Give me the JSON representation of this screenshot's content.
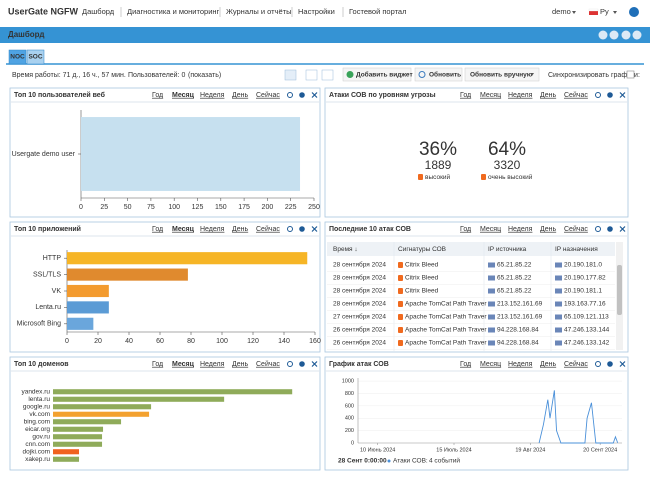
{
  "nav": {
    "brand": "UserGate NGFW",
    "items": [
      "Дашборд",
      "Диагностика и мониторинг",
      "Журналы и отчёты",
      "Настройки",
      "Гостевой портал"
    ],
    "user": "demo",
    "lang": "Ру"
  },
  "header": {
    "title": "Дашборд"
  },
  "tabs": [
    "NOC",
    "SOC"
  ],
  "toolbar": {
    "uptime": "Время работы: 71 д., 16 ч., 57 мин.",
    "users": "Пользователей: 0",
    "show": "(показать)",
    "add": "Добавить виджет",
    "refresh": "Обновить",
    "refresh_mode": "Обновить вручную",
    "sync": "Синхронизировать графики:"
  },
  "periods": [
    "Год",
    "Месяц",
    "Неделя",
    "День",
    "Сейчас"
  ],
  "widgets": [
    {
      "title": "Топ 10 пользователей веб",
      "chart": {
        "type": "hbar",
        "categories": [
          "Usergate demo user"
        ],
        "values": [
          235
        ],
        "colors": [
          "#c6e0ef"
        ],
        "xlim": [
          0,
          250
        ],
        "xticks": [
          0,
          25,
          50,
          75,
          100,
          125,
          150,
          175,
          200,
          225,
          250
        ]
      }
    },
    {
      "title": "Атаки СОВ по уровням угрозы",
      "levels": [
        {
          "percent": "36%",
          "count": "1889",
          "label": "высокий"
        },
        {
          "percent": "64%",
          "count": "3320",
          "label": "очень высокий"
        }
      ]
    },
    {
      "title": "Топ 10 приложений",
      "chart": {
        "type": "hbar",
        "categories": [
          "HTTP",
          "SSL/TLS",
          "VK",
          "Lenta.ru",
          "Microsoft Bing"
        ],
        "values": [
          155,
          78,
          27,
          27,
          17
        ],
        "colors": [
          "#f6b526",
          "#e08a2e",
          "#f39b2f",
          "#5b9bd5",
          "#6aa6dc"
        ],
        "xlim": [
          0,
          160
        ],
        "xticks": [
          0,
          20,
          40,
          60,
          80,
          100,
          120,
          140,
          160
        ]
      }
    },
    {
      "title": "Последние 10 атак СОВ",
      "table": {
        "columns": [
          "Время ↓",
          "Сигнатуры СОВ",
          "IP источника",
          "IP назначения"
        ],
        "rows": [
          [
            "28 сентября 2024",
            "Citrix Bleed",
            "65.21.85.22",
            "20.190.181.0"
          ],
          [
            "28 сентября 2024",
            "Citrix Bleed",
            "65.21.85.22",
            "20.190.177.82"
          ],
          [
            "28 сентября 2024",
            "Citrix Bleed",
            "65.21.85.22",
            "20.190.181.1"
          ],
          [
            "28 сентября 2024",
            "Apache TomCat Path Traver",
            "213.152.161.69",
            "193.163.77.16"
          ],
          [
            "27 сентября 2024",
            "Apache TomCat Path Traver",
            "213.152.161.69",
            "65.109.121.113"
          ],
          [
            "26 сентября 2024",
            "Apache TomCat Path Traver",
            "94.228.168.84",
            "47.246.133.144"
          ],
          [
            "26 сентября 2024",
            "Apache TomCat Path Traver",
            "94.228.168.84",
            "47.246.133.142"
          ]
        ]
      }
    },
    {
      "title": "Топ 10 доменов",
      "chart": {
        "type": "hbar",
        "categories": [
          "yandex.ru",
          "lenta.ru",
          "google.ru",
          "vk.com",
          "bing.com",
          "eicar.org",
          "gov.ru",
          "cnn.com",
          "dojki.com",
          "xakep.ru"
        ],
        "values": [
          239,
          171,
          98,
          96,
          68,
          50,
          49,
          49,
          26,
          26
        ],
        "colors": [
          "#8fab5a",
          "#8fab5a",
          "#8fab5a",
          "#f3a12f",
          "#8fab5a",
          "#8fab5a",
          "#8fab5a",
          "#8fab5a",
          "#f0621f",
          "#8fab5a"
        ]
      }
    },
    {
      "title": "График атак СОВ",
      "chart": {
        "type": "line",
        "color": "#4a90d9",
        "x": [
          "2024-08-23",
          "2024-08-25",
          "2024-08-27",
          "2024-08-28",
          "2024-08-30",
          "2024-08-31",
          "2024-09-02",
          "2024-09-13",
          "2024-09-14",
          "2024-09-16",
          "2024-09-18",
          "2024-09-26",
          "2024-09-27",
          "2024-09-28"
        ],
        "values": [
          0,
          300,
          700,
          400,
          850,
          200,
          0,
          0,
          400,
          650,
          0,
          0,
          100,
          4
        ],
        "xlim": [
          "2024-06-01",
          "2024-09-30"
        ],
        "ylim": [
          0,
          1050
        ],
        "yticks": [
          0,
          200,
          400,
          600,
          800,
          1000
        ],
        "xticks": [
          {
            "value": "2024-06-10",
            "label": "10 Июнь 2024"
          },
          {
            "value": "2024-07-15",
            "label": "15 Июль 2024"
          },
          {
            "value": "2024-08-19",
            "label": "19 Авг 2024"
          },
          {
            "value": "2024-09-20",
            "label": "20 Сент 2024"
          }
        ],
        "footer": {
          "time": "28 Сент 0:00:00",
          "series": "Атаки СОВ:",
          "count": "4 событий"
        }
      }
    }
  ]
}
